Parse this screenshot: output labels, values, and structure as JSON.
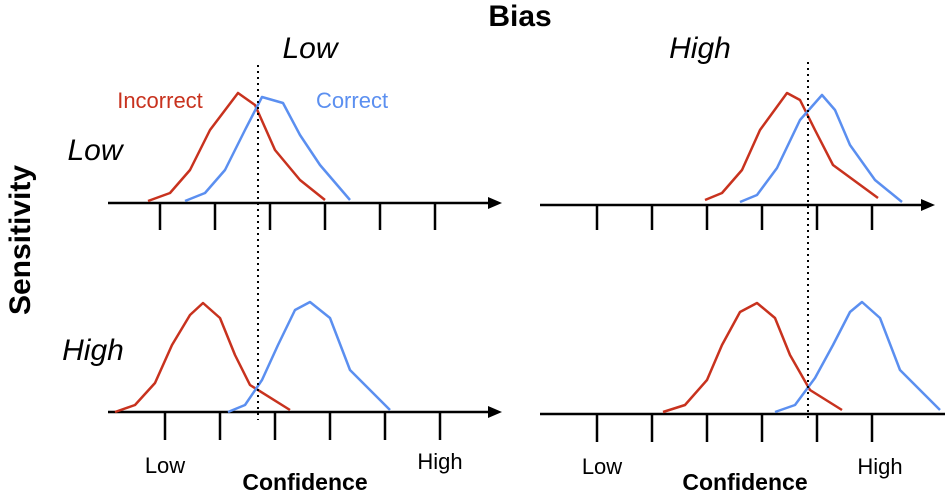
{
  "title": "Bias",
  "columns": [
    "Low",
    "High"
  ],
  "row_axis": "Sensitivity",
  "rows": [
    "Low",
    "High"
  ],
  "legend": {
    "incorrect": "Incorrect",
    "correct": "Correct"
  },
  "x_axes": [
    {
      "label": "Confidence",
      "low": "Low",
      "high": "High"
    },
    {
      "label": "Confidence",
      "low": "Low",
      "high": "High"
    }
  ]
}
